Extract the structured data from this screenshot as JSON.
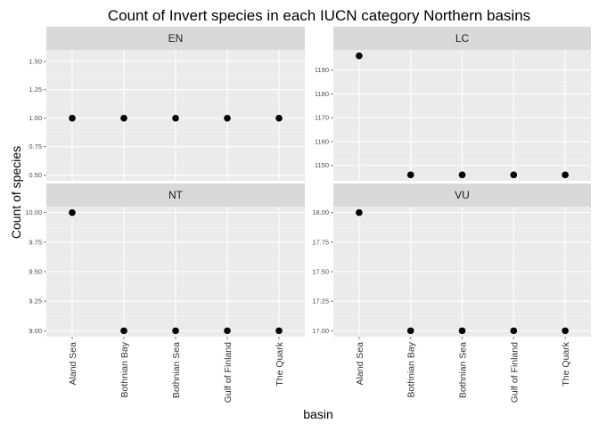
{
  "chart_data": {
    "type": "scatter",
    "title": "Count of Invert species in each IUCN category Northern basins",
    "xlabel": "basin",
    "ylabel": "Count of species",
    "categories": [
      "Aland Sea",
      "Bothnian Bay",
      "Bothnian Sea",
      "Gulf of Finland",
      "The Quark"
    ],
    "grid": true,
    "facets": [
      {
        "label": "EN",
        "values": [
          1,
          1,
          1,
          1,
          1
        ],
        "ylim": [
          0.45,
          1.6
        ],
        "yticks": [
          0.5,
          0.75,
          1.0,
          1.25,
          1.5
        ],
        "yticklabels": [
          "0.50",
          "0.75",
          "1.00",
          "1.25",
          "1.50"
        ]
      },
      {
        "label": "LC",
        "values": [
          1196,
          1146,
          1146,
          1146,
          1146
        ],
        "ylim": [
          1143.5,
          1198.5
        ],
        "yticks": [
          1150,
          1160,
          1170,
          1180,
          1190
        ],
        "yticklabels": [
          "1150",
          "1160",
          "1170",
          "1180",
          "1190"
        ]
      },
      {
        "label": "NT",
        "values": [
          10,
          9,
          9,
          9,
          9
        ],
        "ylim": [
          8.95,
          10.05
        ],
        "yticks": [
          9.0,
          9.25,
          9.5,
          9.75,
          10.0
        ],
        "yticklabels": [
          "9.00",
          "9.25",
          "9.50",
          "9.75",
          "10.00"
        ]
      },
      {
        "label": "VU",
        "values": [
          18,
          17,
          17,
          17,
          17
        ],
        "ylim": [
          16.95,
          18.05
        ],
        "yticks": [
          17.0,
          17.25,
          17.5,
          17.75,
          18.0
        ],
        "yticklabels": [
          "17.00",
          "17.25",
          "17.50",
          "17.75",
          "18.00"
        ]
      }
    ]
  }
}
